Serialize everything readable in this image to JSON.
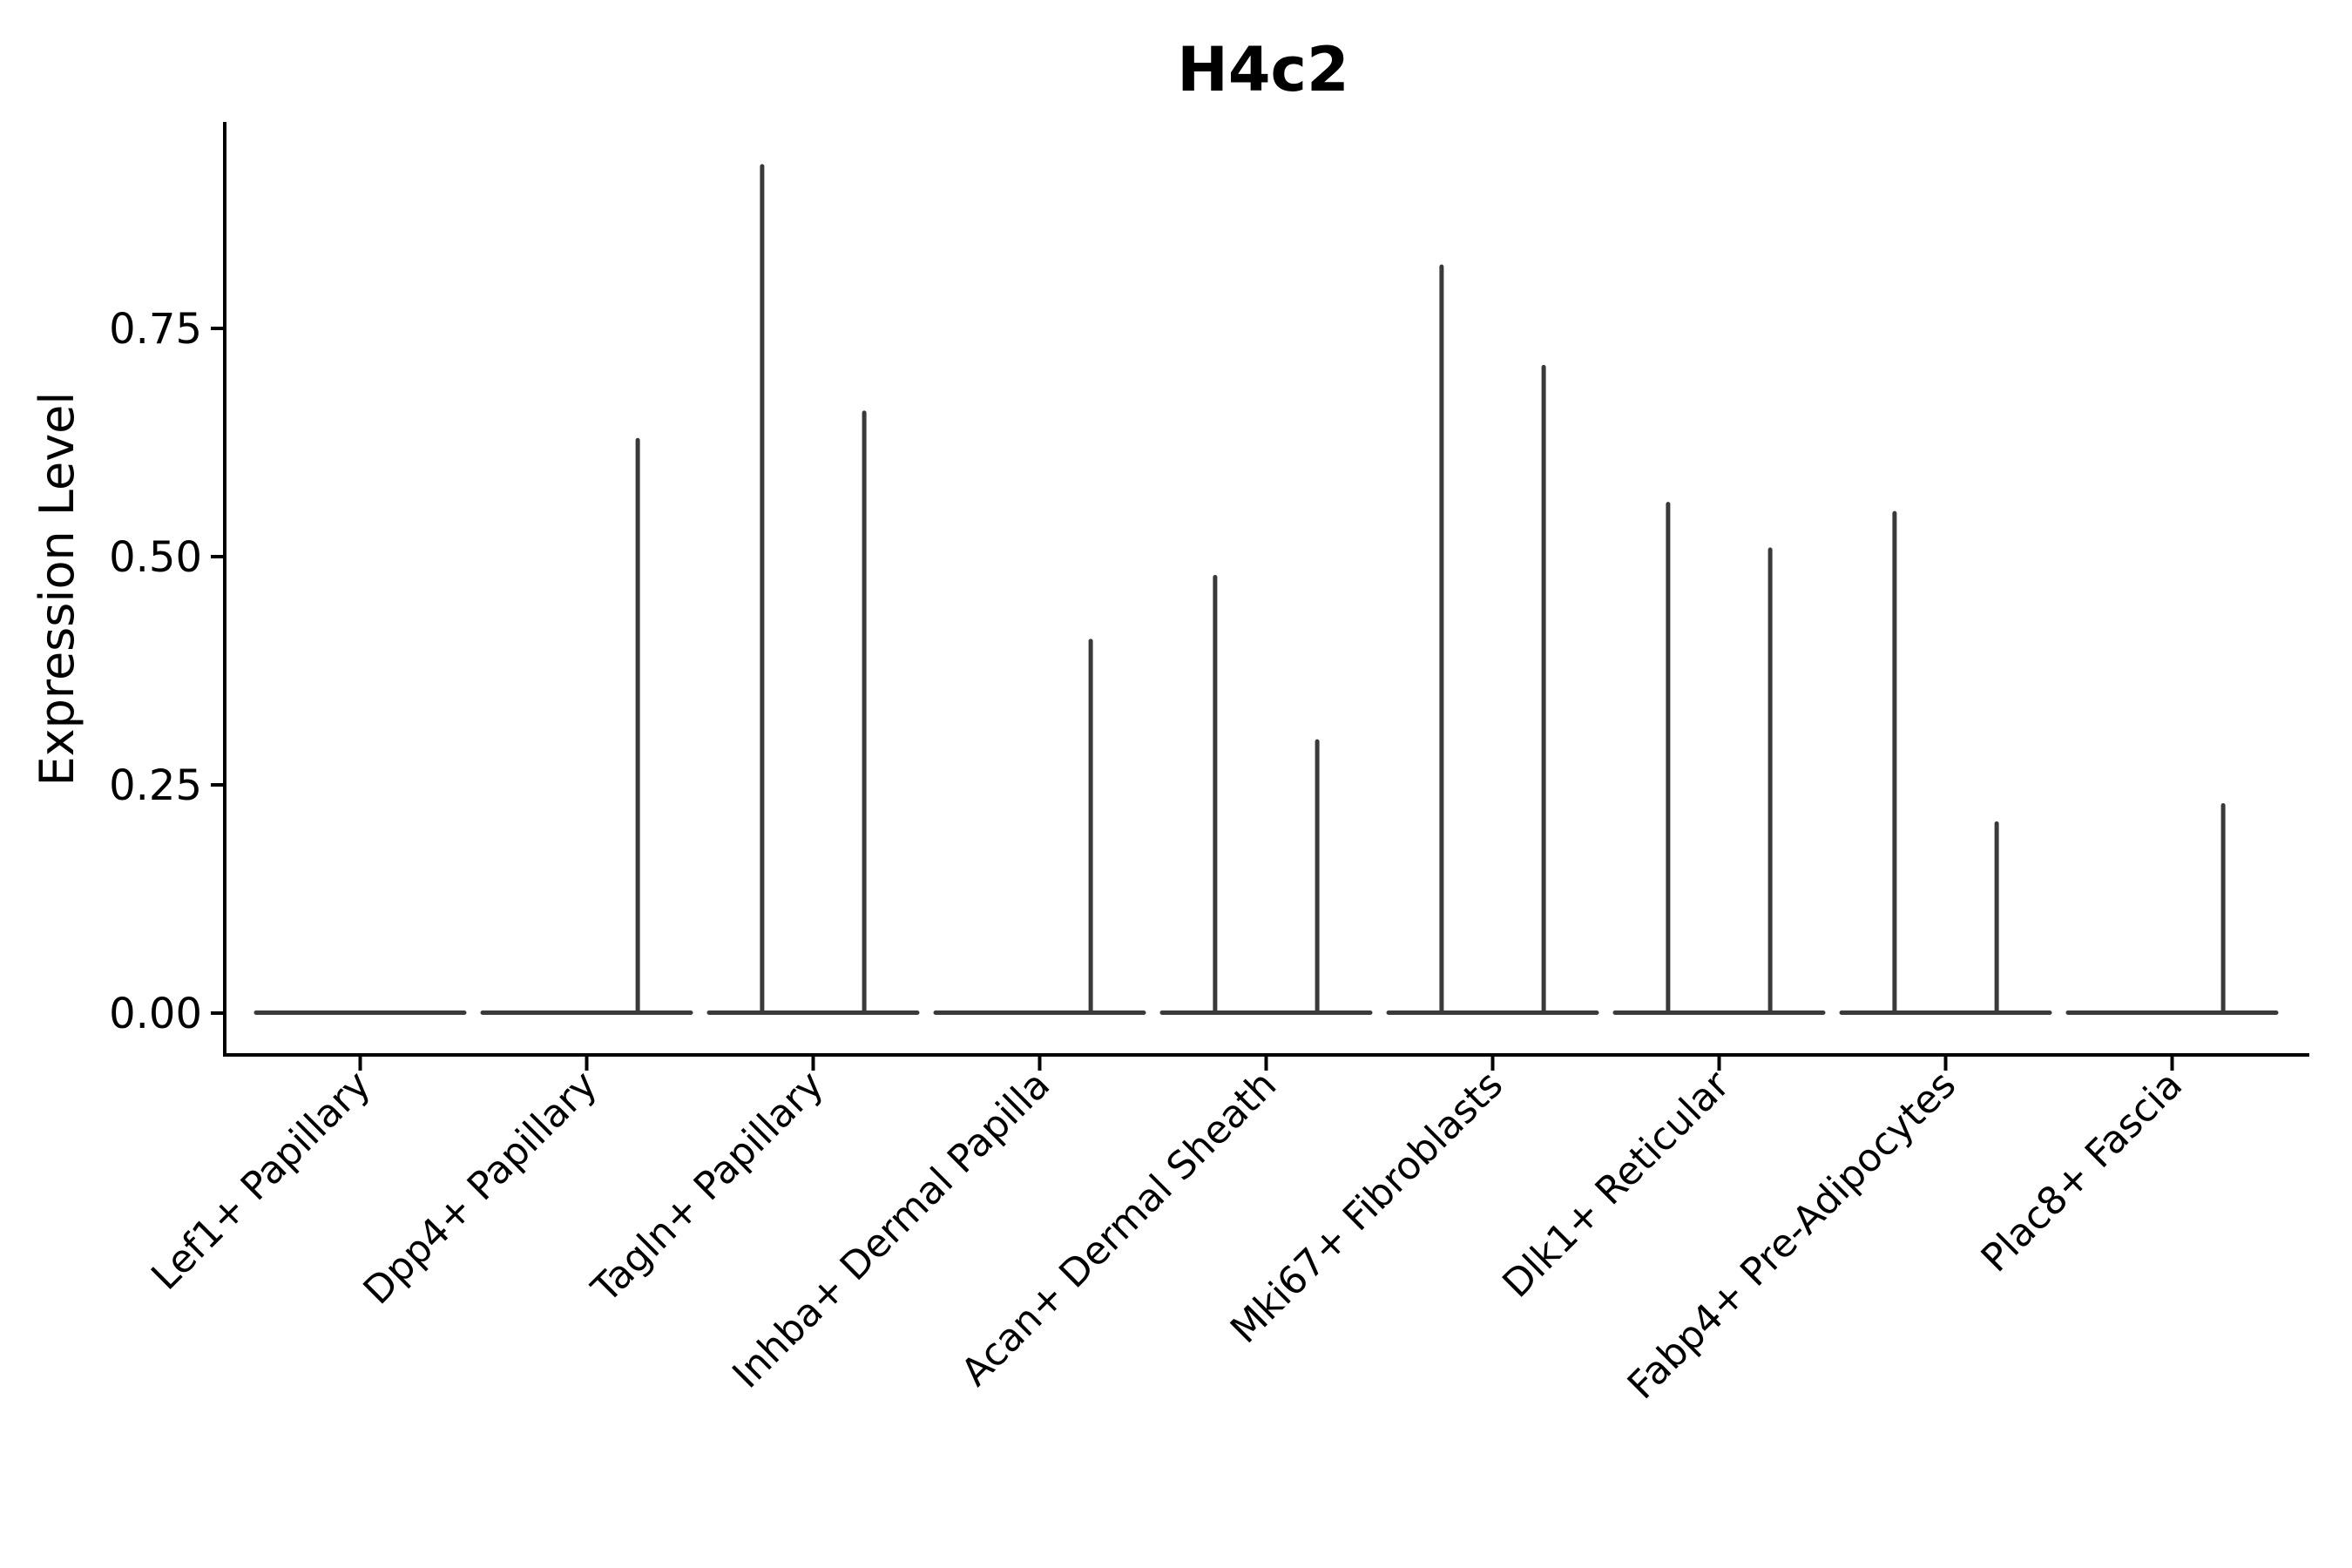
{
  "chart_data": {
    "type": "violin",
    "title": "H4c2",
    "xlabel": "",
    "ylabel": "Expression Level",
    "grid": false,
    "legend_position": "none",
    "background_color": "#FFFFFF",
    "axis_color": "#000000",
    "violin_color": "#3A3A3A",
    "ylim": [
      -0.046,
      0.976
    ],
    "ytick_values": [
      0.0,
      0.25,
      0.5,
      0.75
    ],
    "ytick_labels": [
      "0.00",
      "0.25",
      "0.50",
      "0.75"
    ],
    "categories": [
      "Lef1+ Papillary",
      "Dpp4+ Papillary",
      "Tagln+ Papillary",
      "Inhba+ Dermal Papilla",
      "Acan+ Dermal Sheath",
      "Mki67+ Fibroblasts",
      "Dlk1+ Reticular",
      "Fabp4+ Pre-Adipocytes",
      "Plac8+ Fascia"
    ],
    "description": "Each category shows two adjacent near-zero violins: a flat base at expression 0 with a thin density spike reaching the maximum expression value.",
    "baseline_value": 0.0,
    "series": [
      {
        "name": "left",
        "max_expression": [
          0.0,
          0.0,
          0.93,
          0.0,
          0.48,
          0.82,
          0.56,
          0.55,
          0.0
        ]
      },
      {
        "name": "right",
        "max_expression": [
          0.0,
          0.63,
          0.66,
          0.41,
          0.3,
          0.71,
          0.51,
          0.21,
          0.23
        ]
      }
    ]
  }
}
